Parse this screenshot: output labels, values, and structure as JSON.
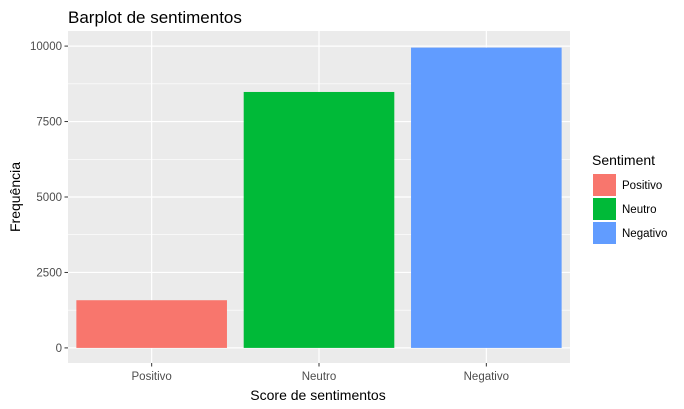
{
  "chart_data": {
    "type": "bar",
    "title": "Barplot de sentimentos",
    "xlabel": "Score de sentimentos",
    "ylabel": "Frequência",
    "categories": [
      "Positivo",
      "Neutro",
      "Negativo"
    ],
    "values": [
      1580,
      8480,
      9950
    ],
    "colors": [
      "#F8766D",
      "#00BA38",
      "#619CFF"
    ],
    "ylim": [
      -500,
      10500
    ],
    "yticks": [
      0,
      2500,
      5000,
      7500,
      10000
    ],
    "ytick_labels": [
      "0",
      "2500",
      "5000",
      "7500",
      "10000"
    ],
    "grid": true,
    "panel_background": "#EBEBEB",
    "legend": {
      "title": "Sentiment",
      "position": "right",
      "entries": [
        "Positivo",
        "Neutro",
        "Negativo"
      ]
    }
  }
}
